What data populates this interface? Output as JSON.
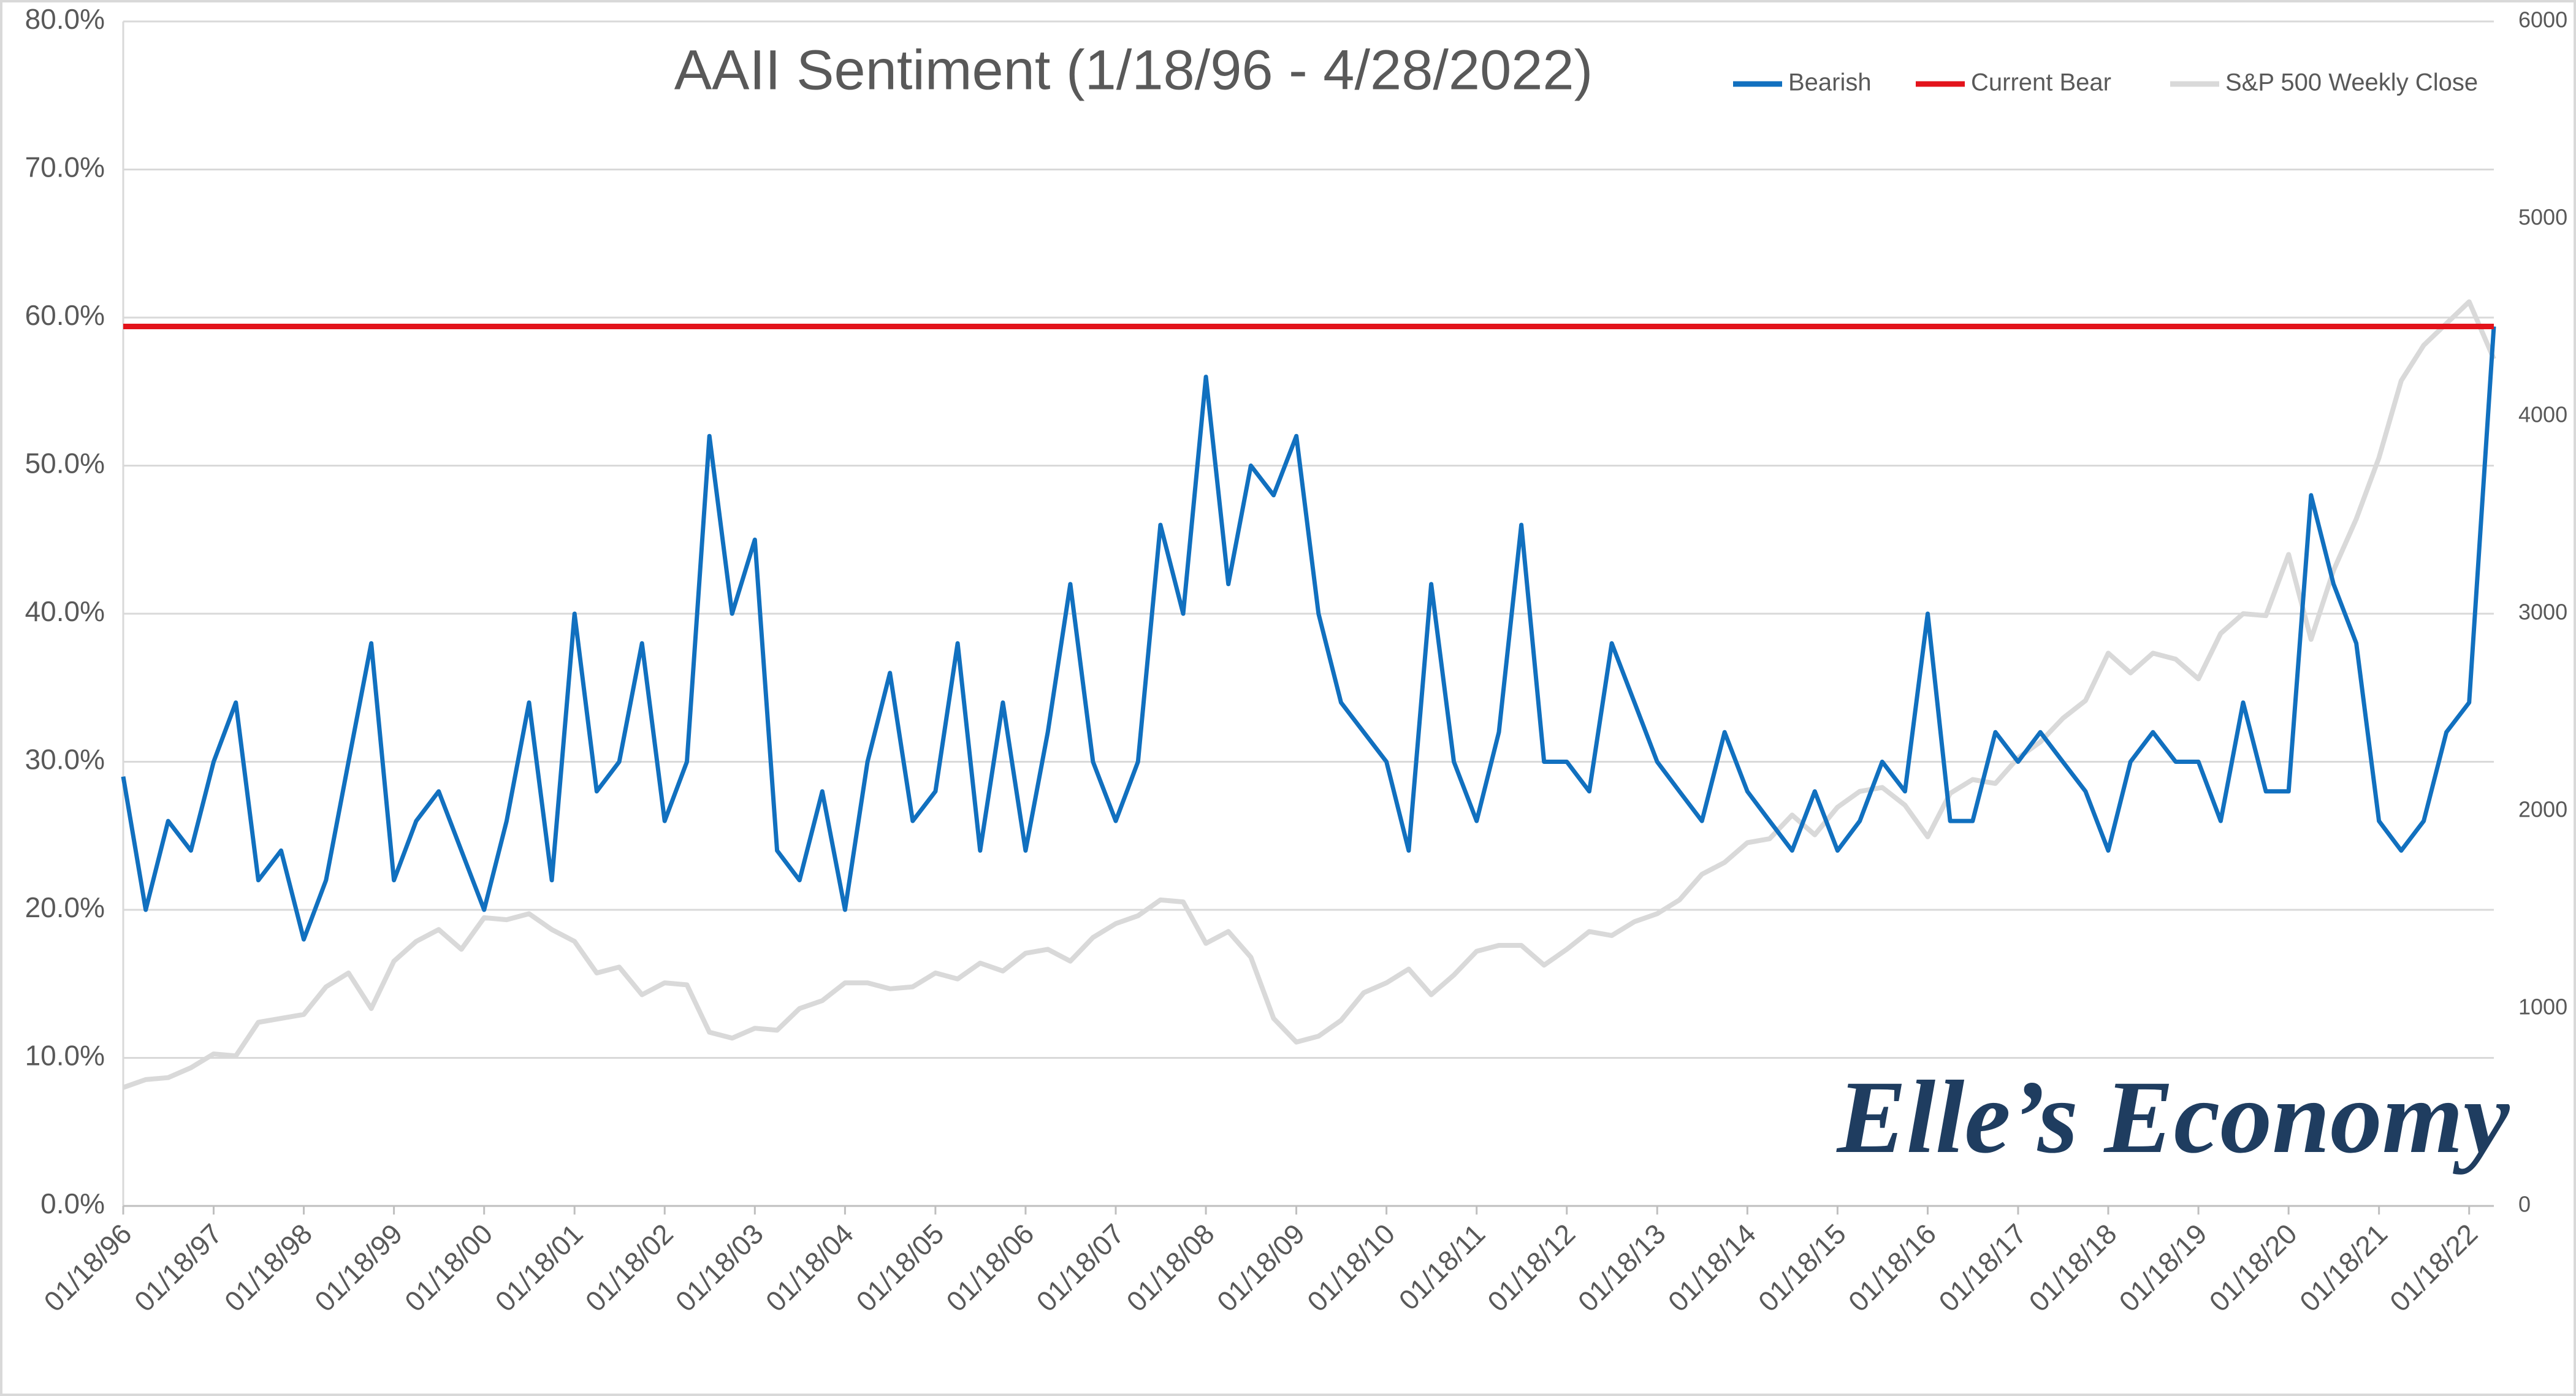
{
  "chart_data": {
    "type": "line",
    "title": "AAII Sentiment (1/18/96 - 4/28/2022)",
    "watermark": "Elle’s Economy",
    "x": [
      "1996-01-18",
      "1996-04-18",
      "1996-07-18",
      "1996-10-18",
      "1997-01-18",
      "1997-04-18",
      "1997-07-18",
      "1997-10-18",
      "1998-01-18",
      "1998-04-18",
      "1998-07-18",
      "1998-10-18",
      "1999-01-18",
      "1999-04-18",
      "1999-07-18",
      "1999-10-18",
      "2000-01-18",
      "2000-04-18",
      "2000-07-18",
      "2000-10-18",
      "2001-01-18",
      "2001-04-18",
      "2001-07-18",
      "2001-10-18",
      "2002-01-18",
      "2002-04-18",
      "2002-07-18",
      "2002-10-18",
      "2003-01-18",
      "2003-04-18",
      "2003-07-18",
      "2003-10-18",
      "2004-01-18",
      "2004-04-18",
      "2004-07-18",
      "2004-10-18",
      "2005-01-18",
      "2005-04-18",
      "2005-07-18",
      "2005-10-18",
      "2006-01-18",
      "2006-04-18",
      "2006-07-18",
      "2006-10-18",
      "2007-01-18",
      "2007-04-18",
      "2007-07-18",
      "2007-10-18",
      "2008-01-18",
      "2008-04-18",
      "2008-07-18",
      "2008-10-18",
      "2009-01-18",
      "2009-04-18",
      "2009-07-18",
      "2009-10-18",
      "2010-01-18",
      "2010-04-18",
      "2010-07-18",
      "2010-10-18",
      "2011-01-18",
      "2011-04-18",
      "2011-07-18",
      "2011-10-18",
      "2012-01-18",
      "2012-04-18",
      "2012-07-18",
      "2012-10-18",
      "2013-01-18",
      "2013-04-18",
      "2013-07-18",
      "2013-10-18",
      "2014-01-18",
      "2014-04-18",
      "2014-07-18",
      "2014-10-18",
      "2015-01-18",
      "2015-04-18",
      "2015-07-18",
      "2015-10-18",
      "2016-01-18",
      "2016-04-18",
      "2016-07-18",
      "2016-10-18",
      "2017-01-18",
      "2017-04-18",
      "2017-07-18",
      "2017-10-18",
      "2018-01-18",
      "2018-04-18",
      "2018-07-18",
      "2018-10-18",
      "2019-01-18",
      "2019-04-18",
      "2019-07-18",
      "2019-10-18",
      "2020-01-18",
      "2020-04-18",
      "2020-07-18",
      "2020-10-18",
      "2021-01-18",
      "2021-04-18",
      "2021-07-18",
      "2021-10-18",
      "2022-01-18",
      "2022-04-28"
    ],
    "series": [
      {
        "name": "Bearish",
        "color": "#1170bf",
        "axis": "y",
        "values": [
          29,
          20,
          26,
          24,
          30,
          34,
          22,
          24,
          18,
          22,
          30,
          38,
          22,
          26,
          28,
          24,
          20,
          26,
          34,
          22,
          40,
          28,
          30,
          38,
          26,
          30,
          52,
          40,
          45,
          24,
          22,
          28,
          20,
          30,
          36,
          26,
          28,
          38,
          24,
          34,
          24,
          32,
          42,
          30,
          26,
          30,
          46,
          40,
          56,
          42,
          50,
          48,
          52,
          40,
          34,
          32,
          30,
          24,
          42,
          30,
          26,
          32,
          46,
          30,
          30,
          28,
          38,
          34,
          30,
          28,
          26,
          32,
          28,
          26,
          24,
          28,
          24,
          26,
          30,
          28,
          40,
          26,
          26,
          32,
          30,
          32,
          30,
          28,
          24,
          30,
          32,
          30,
          30,
          26,
          34,
          28,
          28,
          48,
          42,
          38,
          26,
          24,
          26,
          32,
          34,
          59.4
        ]
      },
      {
        "name": "S&P 500 Weekly Close",
        "color": "#d9d9d9",
        "axis": "y2",
        "values": [
          600,
          640,
          650,
          700,
          770,
          760,
          930,
          950,
          970,
          1110,
          1180,
          1000,
          1240,
          1340,
          1400,
          1300,
          1460,
          1450,
          1480,
          1400,
          1340,
          1180,
          1210,
          1070,
          1130,
          1120,
          880,
          850,
          900,
          890,
          1000,
          1040,
          1130,
          1130,
          1100,
          1110,
          1180,
          1150,
          1230,
          1190,
          1280,
          1300,
          1240,
          1360,
          1430,
          1470,
          1550,
          1540,
          1330,
          1390,
          1260,
          950,
          830,
          860,
          940,
          1080,
          1130,
          1200,
          1070,
          1170,
          1290,
          1320,
          1320,
          1220,
          1300,
          1390,
          1370,
          1440,
          1480,
          1550,
          1680,
          1740,
          1840,
          1860,
          1980,
          1880,
          2020,
          2100,
          2120,
          2030,
          1870,
          2090,
          2160,
          2140,
          2270,
          2350,
          2470,
          2560,
          2800,
          2700,
          2800,
          2770,
          2670,
          2900,
          3000,
          2990,
          3300,
          2870,
          3220,
          3480,
          3790,
          4180,
          4360,
          4470,
          4580,
          4290
        ]
      }
    ],
    "reference_line": {
      "name": "Current Bear",
      "color": "#e3131b",
      "value": 59.4
    },
    "xlim": [
      "1996-01-18",
      "2022-04-28"
    ],
    "xticks": [
      {
        "value": "1996-01-18",
        "label": "01/18/96"
      },
      {
        "value": "1997-01-18",
        "label": "01/18/97"
      },
      {
        "value": "1998-01-18",
        "label": "01/18/98"
      },
      {
        "value": "1999-01-18",
        "label": "01/18/99"
      },
      {
        "value": "2000-01-18",
        "label": "01/18/00"
      },
      {
        "value": "2001-01-18",
        "label": "01/18/01"
      },
      {
        "value": "2002-01-18",
        "label": "01/18/02"
      },
      {
        "value": "2003-01-18",
        "label": "01/18/03"
      },
      {
        "value": "2004-01-18",
        "label": "01/18/04"
      },
      {
        "value": "2005-01-18",
        "label": "01/18/05"
      },
      {
        "value": "2006-01-18",
        "label": "01/18/06"
      },
      {
        "value": "2007-01-18",
        "label": "01/18/07"
      },
      {
        "value": "2008-01-18",
        "label": "01/18/08"
      },
      {
        "value": "2009-01-18",
        "label": "01/18/09"
      },
      {
        "value": "2010-01-18",
        "label": "01/18/10"
      },
      {
        "value": "2011-01-18",
        "label": "01/18/11"
      },
      {
        "value": "2012-01-18",
        "label": "01/18/12"
      },
      {
        "value": "2013-01-18",
        "label": "01/18/13"
      },
      {
        "value": "2014-01-18",
        "label": "01/18/14"
      },
      {
        "value": "2015-01-18",
        "label": "01/18/15"
      },
      {
        "value": "2016-01-18",
        "label": "01/18/16"
      },
      {
        "value": "2017-01-18",
        "label": "01/18/17"
      },
      {
        "value": "2018-01-18",
        "label": "01/18/18"
      },
      {
        "value": "2019-01-18",
        "label": "01/18/19"
      },
      {
        "value": "2020-01-18",
        "label": "01/18/20"
      },
      {
        "value": "2021-01-18",
        "label": "01/18/21"
      },
      {
        "value": "2022-01-18",
        "label": "01/18/22"
      }
    ],
    "ylim": [
      0,
      80
    ],
    "yticks": [
      {
        "value": 0,
        "label": "0.0%"
      },
      {
        "value": 10,
        "label": "10.0%"
      },
      {
        "value": 20,
        "label": "20.0%"
      },
      {
        "value": 30,
        "label": "30.0%"
      },
      {
        "value": 40,
        "label": "40.0%"
      },
      {
        "value": 50,
        "label": "50.0%"
      },
      {
        "value": 60,
        "label": "60.0%"
      },
      {
        "value": 70,
        "label": "70.0%"
      },
      {
        "value": 80,
        "label": "80.0%"
      }
    ],
    "y2lim": [
      0,
      6000
    ],
    "y2ticks": [
      0,
      1000,
      2000,
      3000,
      4000,
      5000,
      6000
    ],
    "grid": true
  }
}
